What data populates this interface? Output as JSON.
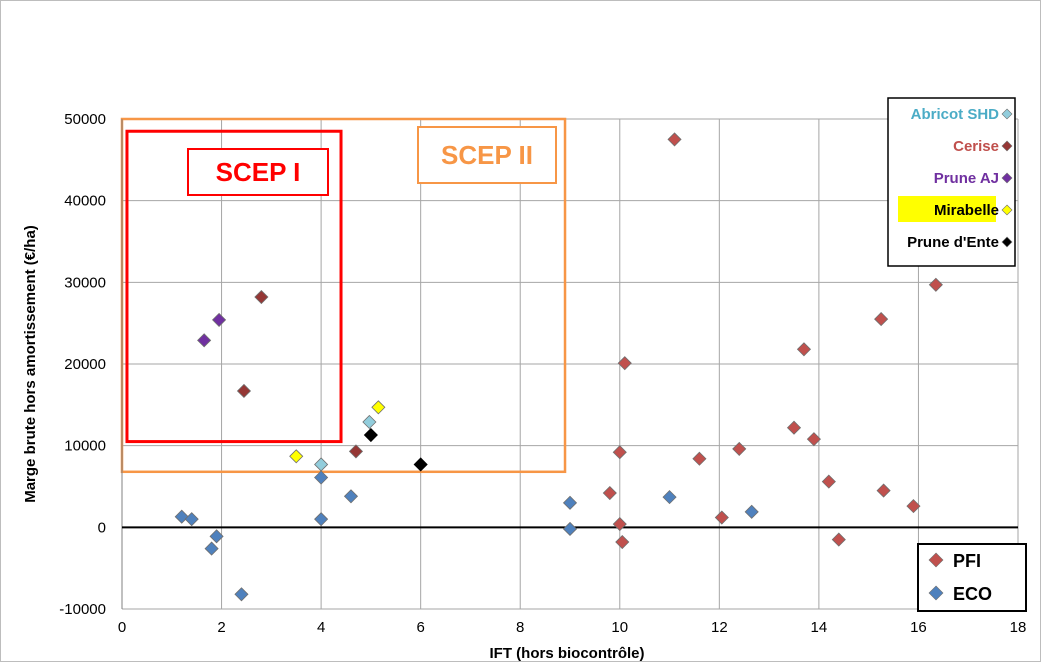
{
  "chart_data": {
    "type": "scatter",
    "xlabel": "IFT (hors biocontrôle)",
    "ylabel": "Marge brute hors amortissement (€/ha)",
    "xlim": [
      0,
      18
    ],
    "ylim": [
      -10000,
      50000
    ],
    "x_ticks": [
      0,
      2,
      4,
      6,
      8,
      10,
      12,
      14,
      16,
      18
    ],
    "y_ticks": [
      -10000,
      0,
      10000,
      20000,
      30000,
      40000,
      50000
    ],
    "x_tick_labels": [
      "0",
      "2",
      "4",
      "6",
      "8",
      "10",
      "12",
      "14",
      "16",
      "18"
    ],
    "y_tick_labels": [
      "-10000",
      "0",
      "10000",
      "20000",
      "30000",
      "40000",
      "50000"
    ],
    "grid": true,
    "regions": [
      {
        "label": "SCEP I",
        "color": "#ff0000",
        "x_range": [
          0.1,
          4.4
        ],
        "y_range": [
          10500,
          48500
        ]
      },
      {
        "label": "SCEP II",
        "color": "#f79646",
        "x_range": [
          0,
          8.9
        ],
        "y_range": [
          6800,
          50000
        ]
      }
    ],
    "series": [
      {
        "name": "PFI",
        "color": "#c0504d",
        "points": [
          [
            9.8,
            4200
          ],
          [
            10.0,
            9200
          ],
          [
            10.0,
            400
          ],
          [
            10.05,
            -1800
          ],
          [
            10.1,
            20100
          ],
          [
            11.1,
            47500
          ],
          [
            11.6,
            8400
          ],
          [
            12.05,
            1200
          ],
          [
            12.4,
            9600
          ],
          [
            13.5,
            12200
          ],
          [
            13.7,
            21800
          ],
          [
            13.9,
            10800
          ],
          [
            14.2,
            5600
          ],
          [
            14.4,
            -1500
          ],
          [
            15.25,
            25500
          ],
          [
            15.3,
            4500
          ],
          [
            15.9,
            2600
          ],
          [
            16.35,
            29700
          ]
        ]
      },
      {
        "name": "ECO",
        "color": "#4f81bd",
        "points": [
          [
            1.2,
            1300
          ],
          [
            1.4,
            1000
          ],
          [
            1.8,
            -2600
          ],
          [
            1.9,
            -1100
          ],
          [
            2.4,
            -8200
          ],
          [
            4.0,
            6100
          ],
          [
            4.0,
            1000
          ],
          [
            4.6,
            3800
          ],
          [
            9.0,
            3000
          ],
          [
            9.0,
            -200
          ],
          [
            11.0,
            3700
          ],
          [
            12.65,
            1900
          ]
        ]
      },
      {
        "name": "Abricot SHD",
        "color": "#92cddc",
        "points": [
          [
            4.0,
            7700
          ],
          [
            4.97,
            12900
          ]
        ]
      },
      {
        "name": "Cerise",
        "color": "#953735",
        "points": [
          [
            2.45,
            16700
          ],
          [
            2.8,
            28200
          ],
          [
            4.7,
            9300
          ]
        ]
      },
      {
        "name": "Prune AJ",
        "color": "#7030a0",
        "points": [
          [
            1.65,
            22900
          ],
          [
            1.95,
            25400
          ]
        ]
      },
      {
        "name": "Mirabelle",
        "color": "#ffff00",
        "points": [
          [
            3.5,
            8700
          ],
          [
            5.15,
            14700
          ]
        ]
      },
      {
        "name": "Prune d'Ente",
        "color": "#000000",
        "points": [
          [
            5.0,
            11300
          ],
          [
            6.0,
            7700
          ]
        ]
      }
    ],
    "legend_top_right": [
      {
        "label": "Abricot SHD",
        "text_color": "#4bacc6",
        "marker_color": "#92cddc"
      },
      {
        "label": "Cerise",
        "text_color": "#c0504d",
        "marker_color": "#953735"
      },
      {
        "label": "Prune AJ",
        "text_color": "#7030a0",
        "marker_color": "#7030a0"
      },
      {
        "label": "Mirabelle",
        "text_color": "#000000",
        "marker_color": "#ffff00",
        "highlight": "#ffff00"
      },
      {
        "label": "Prune d'Ente",
        "text_color": "#000000",
        "marker_color": "#000000"
      }
    ],
    "legend_bottom_right": [
      {
        "label": "PFI",
        "marker_color": "#c0504d"
      },
      {
        "label": "ECO",
        "marker_color": "#4f81bd"
      }
    ]
  }
}
